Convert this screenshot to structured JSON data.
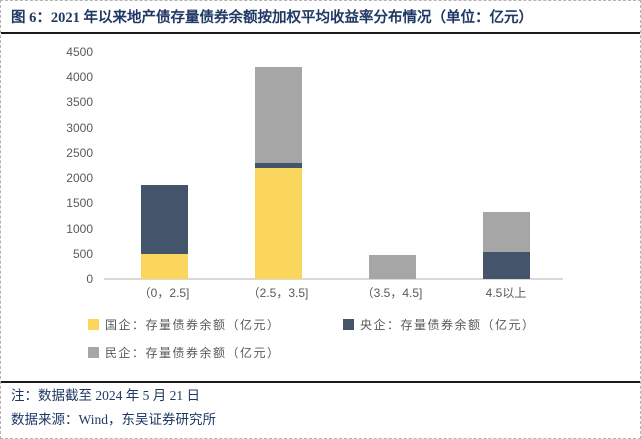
{
  "figure": {
    "title": "图 6：2021 年以来地产债存量债券余额按加权平均收益率分布情况（单位：亿元）",
    "note_date": "注：数据截至 2024 年 5 月 21 日",
    "note_source": "数据来源：Wind，东吴证券研究所"
  },
  "chart_data": {
    "type": "bar",
    "stacked": true,
    "title": "2021 年以来地产债存量债券余额按加权平均收益率分布情况",
    "unit": "亿元",
    "categories": [
      "（0，2.5]",
      "（2.5，3.5]",
      "（3.5，4.5]",
      "4.5以上"
    ],
    "series": [
      {
        "name": "国企：存量债券余额（亿元）",
        "color": "#FBD65C",
        "values": [
          500,
          2200,
          0,
          0
        ]
      },
      {
        "name": "央企：存量债券余额（亿元）",
        "color": "#44546A",
        "values": [
          1370,
          100,
          0,
          540
        ]
      },
      {
        "name": "民企：存量债券余额（亿元）",
        "color": "#A6A6A6",
        "values": [
          0,
          1900,
          470,
          790
        ]
      }
    ],
    "totals": [
      1870,
      4200,
      470,
      1330
    ],
    "xlabel": "",
    "ylabel": "",
    "ylim": [
      0,
      4500
    ],
    "ytick_step": 500,
    "grid": false,
    "legend_position": "bottom-left"
  },
  "colors": {
    "title_text": "#1F3864",
    "note_text": "#1F3864",
    "axis_label": "#595959",
    "axis_line": "#D9D9D9",
    "rule_line": "#1A1A1A",
    "border": "#B3B3B3",
    "series_guoqi": "#FBD65C",
    "series_yangqi": "#44546A",
    "series_minqi": "#A6A6A6"
  }
}
